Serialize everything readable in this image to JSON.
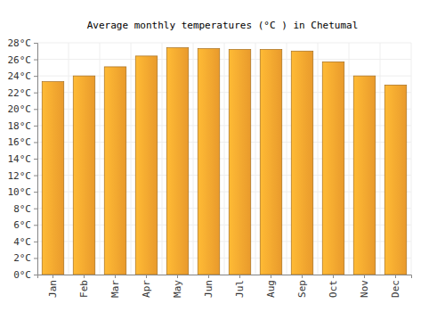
{
  "chart_data": {
    "type": "bar",
    "title": "Average monthly temperatures (°C ) in Chetumal",
    "categories": [
      "Jan",
      "Feb",
      "Mar",
      "Apr",
      "May",
      "Jun",
      "Jul",
      "Aug",
      "Sep",
      "Oct",
      "Nov",
      "Dec"
    ],
    "values": [
      23.3,
      24.0,
      25.1,
      26.4,
      27.4,
      27.3,
      27.2,
      27.2,
      27.0,
      25.7,
      24.0,
      22.9
    ],
    "color": "#ffa830",
    "ylim": [
      0,
      28
    ],
    "yticks": [
      {
        "value": 0,
        "label": "0°C"
      },
      {
        "value": 2,
        "label": "2°C"
      },
      {
        "value": 4,
        "label": "4°C"
      },
      {
        "value": 6,
        "label": "6°C"
      },
      {
        "value": 8,
        "label": "8°C"
      },
      {
        "value": 10,
        "label": "10°C"
      },
      {
        "value": 12,
        "label": "12°C"
      },
      {
        "value": 14,
        "label": "14°C"
      },
      {
        "value": 16,
        "label": "16°C"
      },
      {
        "value": 18,
        "label": "18°C"
      },
      {
        "value": 20,
        "label": "20°C"
      },
      {
        "value": 22,
        "label": "22°C"
      },
      {
        "value": 24,
        "label": "24°C"
      },
      {
        "value": 26,
        "label": "26°C"
      },
      {
        "value": 28,
        "label": "28°C"
      }
    ],
    "grid": true
  }
}
